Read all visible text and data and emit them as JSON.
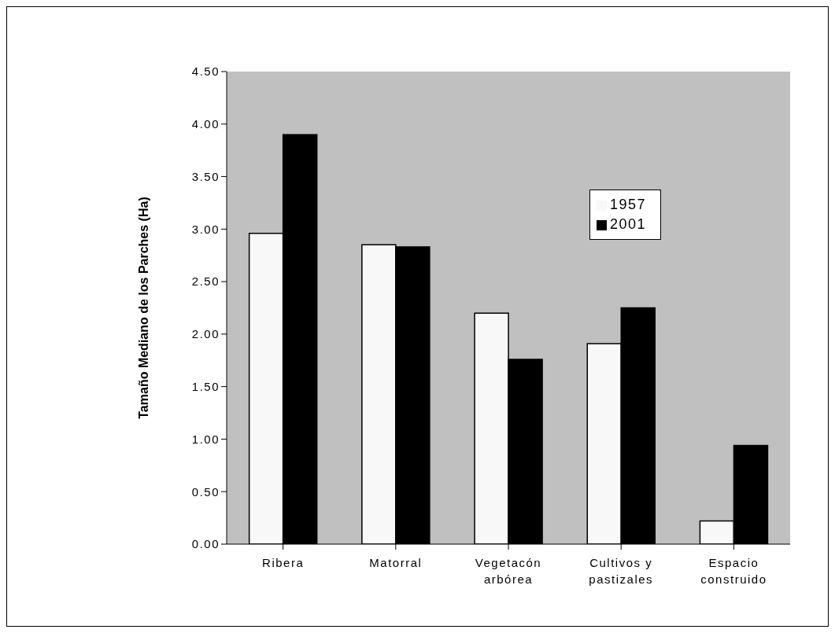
{
  "chart_data": {
    "type": "bar",
    "ylabel": "Tamaño Mediano de los Parches (Ha)",
    "categories": [
      "Ribera",
      "Matorral",
      "Vegetacón arbórea",
      "Cultivos y pastizales",
      "Espacio construido"
    ],
    "series": [
      {
        "name": "1957",
        "color": "#f8f8f8",
        "values": [
          2.96,
          2.85,
          2.2,
          1.91,
          0.22
        ]
      },
      {
        "name": "2001",
        "color": "#000000",
        "values": [
          3.9,
          2.83,
          1.76,
          2.25,
          0.94
        ]
      }
    ],
    "ylim": [
      0,
      4.5
    ],
    "yticks": [
      {
        "value": 0,
        "label": "0.00"
      },
      {
        "value": 0.5,
        "label": "0.50"
      },
      {
        "value": 1,
        "label": "1.00"
      },
      {
        "value": 1.5,
        "label": "1.50"
      },
      {
        "value": 2,
        "label": "2.00"
      },
      {
        "value": 2.5,
        "label": "2.50"
      },
      {
        "value": 3,
        "label": "3.00"
      },
      {
        "value": 3.5,
        "label": "3.50"
      },
      {
        "value": 4,
        "label": "4.00"
      },
      {
        "value": 4.5,
        "label": "4.50"
      }
    ],
    "legend": "right"
  }
}
